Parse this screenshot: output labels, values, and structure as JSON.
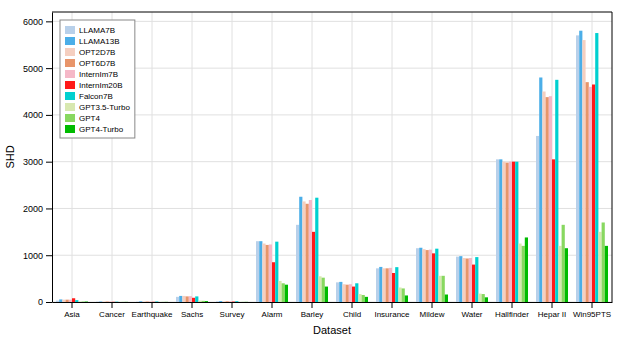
{
  "chart_data": {
    "type": "bar",
    "xlabel": "Dataset",
    "ylabel": "SHD",
    "categories": [
      "Asia",
      "Cancer",
      "Earthquake",
      "Sachs",
      "Survey",
      "Alarm",
      "Barley",
      "Child",
      "Insurance",
      "Mildew",
      "Water",
      "Hallfinder",
      "Hepar II",
      "Win95PTS"
    ],
    "series": [
      {
        "name": "LLAMA7B",
        "color": "#b8d0ea",
        "values": [
          30,
          8,
          8,
          110,
          15,
          1300,
          1650,
          420,
          720,
          1150,
          970,
          3050,
          3550,
          5700
        ]
      },
      {
        "name": "LLAMA13B",
        "color": "#4baee8",
        "values": [
          55,
          10,
          15,
          130,
          20,
          1300,
          2250,
          430,
          750,
          1160,
          980,
          3050,
          4800,
          5800
        ]
      },
      {
        "name": "OPT2D7B",
        "color": "#f5cfc0",
        "values": [
          50,
          10,
          10,
          130,
          15,
          1250,
          2150,
          380,
          720,
          1130,
          940,
          3000,
          4500,
          5600
        ]
      },
      {
        "name": "OPT6D7B",
        "color": "#e8956a",
        "values": [
          50,
          10,
          10,
          120,
          15,
          1220,
          2100,
          370,
          720,
          1110,
          930,
          2980,
          4380,
          4700
        ]
      },
      {
        "name": "InternIm7B",
        "color": "#f5b8c8",
        "values": [
          50,
          10,
          10,
          125,
          15,
          1230,
          2180,
          380,
          730,
          1120,
          940,
          3000,
          4400,
          4600
        ]
      },
      {
        "name": "InternIm20B",
        "color": "#ff1a1a",
        "values": [
          80,
          5,
          5,
          90,
          10,
          850,
          1500,
          330,
          620,
          1040,
          800,
          3000,
          3050,
          4650
        ]
      },
      {
        "name": "Falcon7B",
        "color": "#00d0d0",
        "values": [
          40,
          8,
          12,
          120,
          18,
          1290,
          2230,
          400,
          745,
          1140,
          960,
          3000,
          4750,
          5750
        ]
      },
      {
        "name": "GPT3.5-Turbo",
        "color": "#d8e8b0",
        "values": [
          10,
          3,
          3,
          30,
          3,
          450,
          550,
          170,
          310,
          560,
          180,
          1250,
          1200,
          1500
        ]
      },
      {
        "name": "GPT4",
        "color": "#88d860",
        "values": [
          10,
          3,
          3,
          25,
          3,
          400,
          520,
          150,
          290,
          560,
          170,
          1200,
          1650,
          1700
        ]
      },
      {
        "name": "GPT4-Turbo",
        "color": "#00bb00",
        "values": [
          10,
          3,
          3,
          20,
          3,
          370,
          330,
          110,
          140,
          160,
          100,
          1380,
          1150,
          1200
        ]
      }
    ],
    "ylim": [
      0,
      6200
    ],
    "yticks": [
      0,
      1000,
      2000,
      3000,
      4000,
      5000,
      6000
    ],
    "grid": true,
    "legend": "upper left"
  }
}
